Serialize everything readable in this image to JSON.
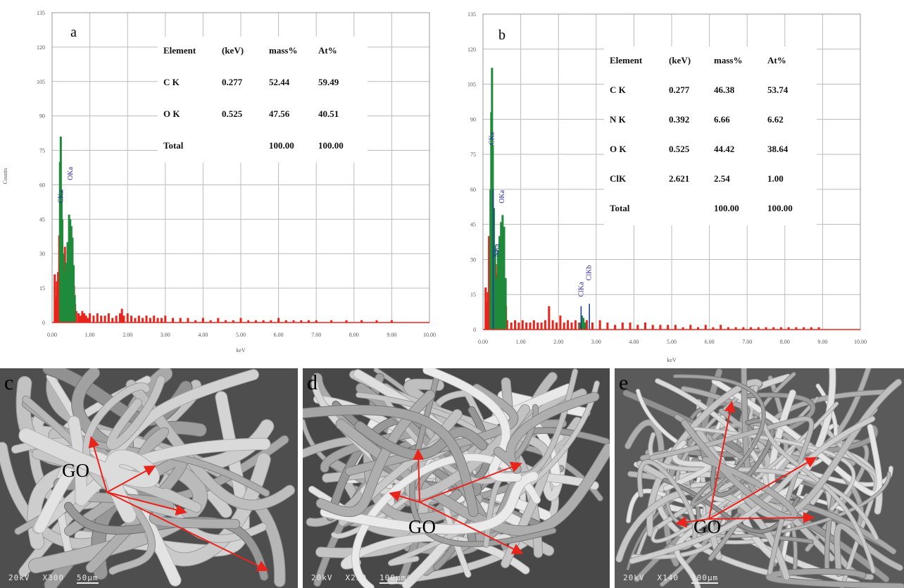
{
  "chart_data": [
    {
      "type": "bar",
      "panel": "a",
      "xlabel": "keV",
      "ylabel": "Counts",
      "xlim": [
        0,
        10
      ],
      "ylim": [
        0,
        135
      ],
      "xticks": [
        "0.00",
        "1.00",
        "2.00",
        "3.00",
        "4.00",
        "5.00",
        "6.00",
        "7.00",
        "8.00",
        "9.00",
        "10.00"
      ],
      "yticks": [
        "0",
        "15",
        "30",
        "45",
        "60",
        "75",
        "90",
        "105",
        "120",
        "135"
      ],
      "grid": true,
      "peak_labels": [
        {
          "text": "CKa",
          "x": 0.29,
          "y": 52
        },
        {
          "text": "OKa",
          "x": 0.54,
          "y": 62
        }
      ],
      "series": [
        {
          "color": "#e8241c",
          "x": [
            0.07,
            0.1,
            0.13,
            0.16,
            0.19,
            0.22,
            0.25,
            0.28,
            0.31,
            0.34,
            0.37,
            0.4,
            0.43,
            0.46,
            0.49,
            0.52,
            0.55,
            0.58,
            0.61,
            0.64,
            0.7,
            0.75,
            0.8,
            0.85,
            0.9,
            0.95,
            1.0,
            1.1,
            1.2,
            1.3,
            1.4,
            1.5,
            1.6,
            1.7,
            1.8,
            1.85,
            1.9,
            2.0,
            2.1,
            2.2,
            2.3,
            2.4,
            2.5,
            2.6,
            2.7,
            2.8,
            2.9,
            3.0,
            3.2,
            3.4,
            3.6,
            3.8,
            4.0,
            4.2,
            4.4,
            4.6,
            4.8,
            5.0,
            5.2,
            5.4,
            5.6,
            5.8,
            6.0,
            6.2,
            6.4,
            6.6,
            6.8,
            7.0,
            7.4,
            7.8,
            8.2,
            8.6,
            9.0
          ],
          "values": [
            21,
            11,
            18,
            22,
            38,
            34,
            24,
            20,
            29,
            33,
            26,
            25,
            22,
            23,
            20,
            24,
            21,
            16,
            8,
            5,
            4,
            3,
            5,
            4,
            3,
            2,
            4,
            3,
            4,
            3,
            3,
            4,
            2,
            3,
            4,
            6,
            3,
            4,
            3,
            2,
            3,
            2,
            3,
            2,
            3,
            2,
            2,
            3,
            2,
            2,
            2,
            1,
            2,
            1,
            2,
            1,
            1,
            2,
            1,
            1,
            1,
            1,
            2,
            1,
            1,
            1,
            1,
            1,
            1,
            1,
            1,
            1,
            1
          ]
        },
        {
          "color": "#1f8a3b",
          "x": [
            0.21,
            0.23,
            0.25,
            0.27,
            0.3,
            0.33,
            0.37,
            0.41,
            0.45,
            0.48,
            0.51,
            0.54,
            0.57,
            0.6
          ],
          "values": [
            70,
            81,
            58,
            45,
            30,
            22,
            26,
            35,
            47,
            45,
            42,
            37,
            25,
            12
          ]
        }
      ],
      "table": {
        "headers": [
          "Element",
          "(keV)",
          "mass%",
          "At%"
        ],
        "rows": [
          [
            "C K",
            "0.277",
            "52.44",
            "59.49"
          ],
          [
            "O K",
            "0.525",
            "47.56",
            "40.51"
          ],
          [
            "Total",
            "",
            "100.00",
            "100.00"
          ]
        ]
      }
    },
    {
      "type": "bar",
      "panel": "b",
      "xlabel": "keV",
      "xlim": [
        0,
        10
      ],
      "ylim": [
        0,
        135
      ],
      "xticks": [
        "0.00",
        "1.00",
        "2.00",
        "3.00",
        "4.00",
        "5.00",
        "6.00",
        "7.00",
        "8.00",
        "9.00",
        "10.00"
      ],
      "yticks": [
        "0",
        "15",
        "30",
        "45",
        "60",
        "75",
        "90",
        "105",
        "120",
        "135"
      ],
      "grid": true,
      "peak_labels": [
        {
          "text": "CKa",
          "x": 0.29,
          "y": 79
        },
        {
          "text": "NKa",
          "x": 0.42,
          "y": 31
        },
        {
          "text": "OKa",
          "x": 0.56,
          "y": 54
        },
        {
          "text": "ClKa",
          "x": 2.66,
          "y": 14
        },
        {
          "text": "ClKb",
          "x": 2.86,
          "y": 21
        }
      ],
      "series": [
        {
          "color": "#e8241c",
          "x": [
            0.07,
            0.1,
            0.13,
            0.16,
            0.19,
            0.22,
            0.25,
            0.28,
            0.31,
            0.34,
            0.37,
            0.4,
            0.43,
            0.46,
            0.49,
            0.52,
            0.55,
            0.58,
            0.61,
            0.64,
            0.75,
            0.85,
            0.95,
            1.05,
            1.15,
            1.25,
            1.35,
            1.45,
            1.55,
            1.65,
            1.75,
            1.85,
            1.95,
            2.05,
            2.15,
            2.25,
            2.35,
            2.45,
            2.55,
            2.65,
            2.75,
            2.9,
            3.1,
            3.3,
            3.5,
            3.7,
            3.9,
            4.1,
            4.3,
            4.5,
            4.7,
            4.9,
            5.1,
            5.3,
            5.5,
            5.7,
            5.9,
            6.1,
            6.3,
            6.5,
            6.7,
            6.9,
            7.1,
            7.3,
            7.5,
            7.7,
            7.9,
            8.1,
            8.3,
            8.5,
            8.7,
            8.9
          ],
          "values": [
            18,
            12,
            16,
            40,
            36,
            30,
            26,
            22,
            30,
            28,
            24,
            22,
            20,
            22,
            20,
            22,
            18,
            14,
            10,
            4,
            3,
            4,
            3,
            4,
            3,
            3,
            4,
            3,
            3,
            4,
            10,
            4,
            3,
            6,
            3,
            4,
            3,
            4,
            3,
            4,
            4,
            3,
            4,
            3,
            2,
            3,
            3,
            2,
            3,
            2,
            2,
            2,
            2,
            1,
            2,
            1,
            2,
            1,
            2,
            1,
            1,
            1,
            1,
            1,
            1,
            1,
            1,
            1,
            1,
            1,
            1,
            1
          ]
        },
        {
          "color": "#1f8a3b",
          "x": [
            0.2,
            0.22,
            0.24,
            0.26,
            0.29,
            0.32,
            0.36,
            0.4,
            0.44,
            0.48,
            0.52,
            0.56,
            0.6,
            2.58,
            2.62,
            2.66,
            2.7
          ],
          "values": [
            60,
            93,
            112,
            79,
            52,
            36,
            22,
            34,
            40,
            46,
            49,
            44,
            22,
            3,
            6,
            5,
            3
          ]
        },
        {
          "color": "#1e3c9c",
          "x": [
            0.27,
            2.6,
            2.82
          ],
          "values": [
            60,
            10,
            11
          ]
        }
      ],
      "table": {
        "headers": [
          "Element",
          "(keV)",
          "mass%",
          "At%"
        ],
        "rows": [
          [
            "C K",
            "0.277",
            "46.38",
            "53.74"
          ],
          [
            "N K",
            "0.392",
            "6.66",
            "6.62"
          ],
          [
            "O K",
            "0.525",
            "44.42",
            "38.64"
          ],
          [
            "ClK",
            "2.621",
            "2.54",
            "1.00"
          ],
          [
            "Total",
            "",
            "100.00",
            "100.00"
          ]
        ]
      }
    }
  ],
  "sem_panels": [
    {
      "letter": "c",
      "label": "GO",
      "kv": "20kV",
      "mag": "X300",
      "scale": "50µm",
      "arrow_color": "#e8241c"
    },
    {
      "letter": "d",
      "label": "GO",
      "kv": "20kV",
      "mag": "X230",
      "scale": "100µm",
      "arrow_color": "#e8241c"
    },
    {
      "letter": "e",
      "label": "GO",
      "kv": "20kV",
      "mag": "X140",
      "scale": "100µm",
      "arrow_color": "#e8241c"
    }
  ]
}
